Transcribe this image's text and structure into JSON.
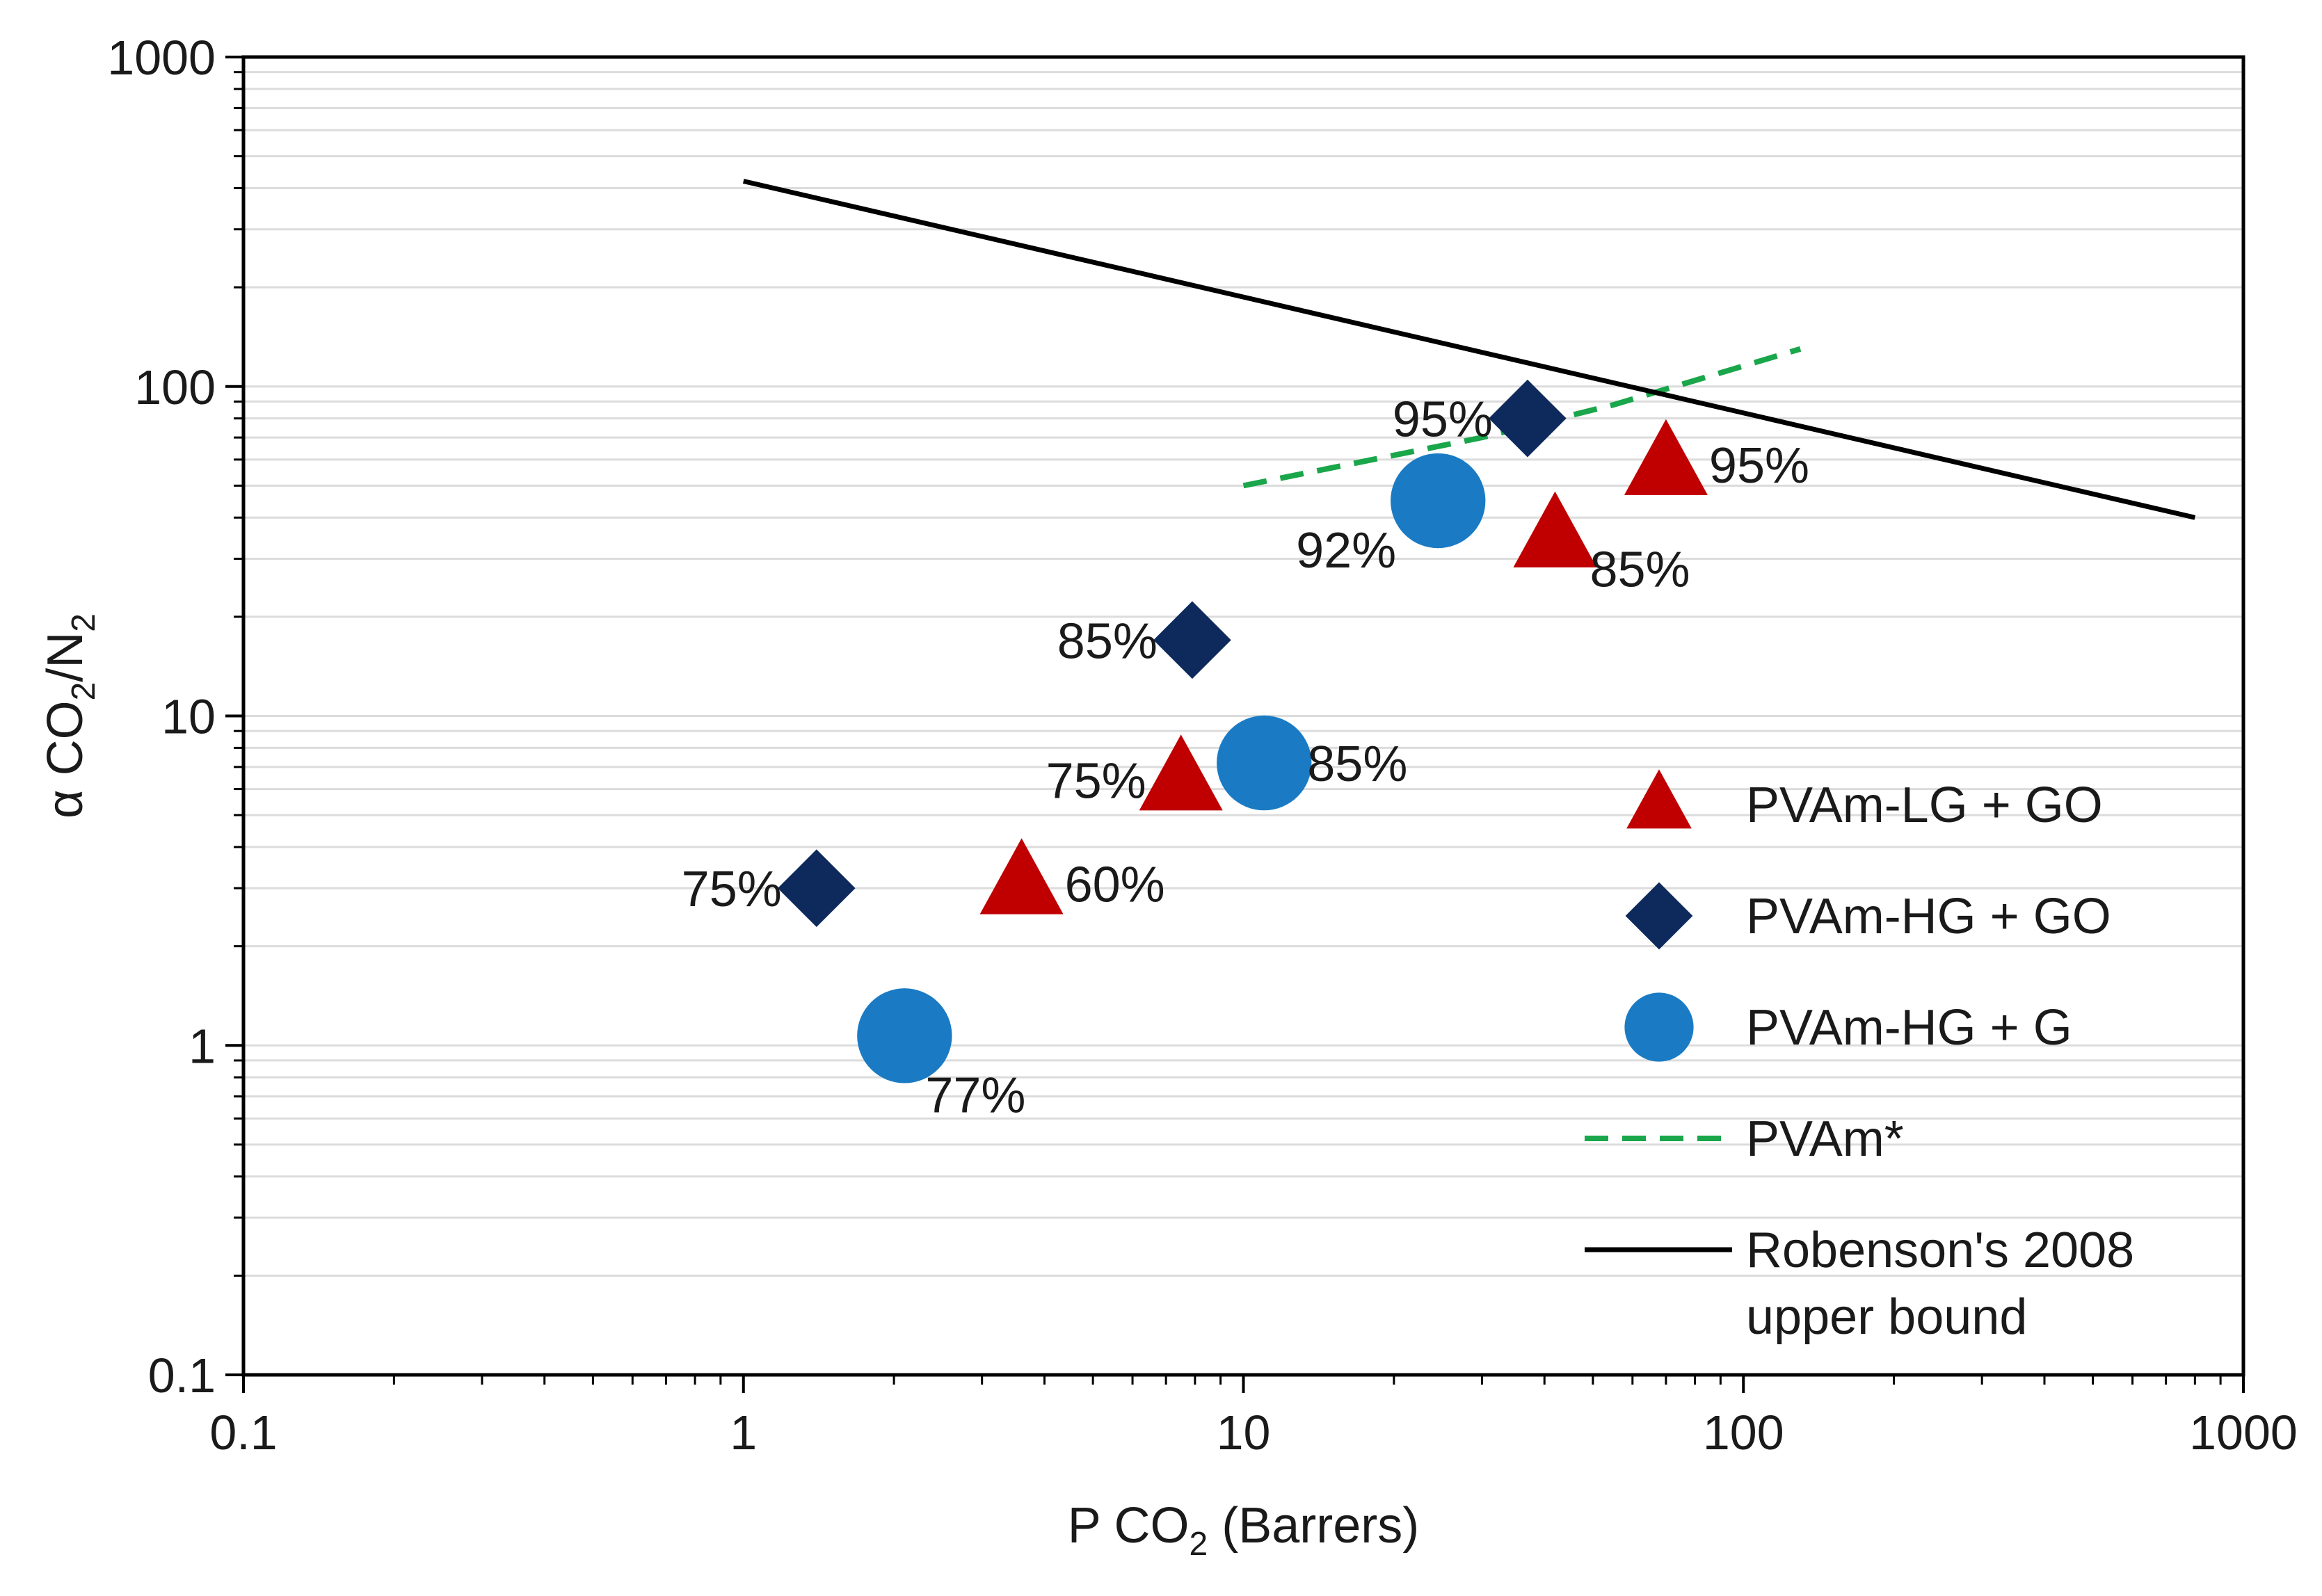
{
  "chart_data": {
    "type": "scatter",
    "title": "",
    "xscale": "log",
    "yscale": "log",
    "xlim": [
      0.1,
      1000
    ],
    "ylim": [
      0.1,
      1000
    ],
    "grid": "horizontal minor",
    "x_ticks": [
      "0.1",
      "1",
      "10",
      "100",
      "1000"
    ],
    "y_ticks": [
      "0.1",
      "1",
      "10",
      "100",
      "1000"
    ],
    "xlabel": {
      "pre": "P CO",
      "sub": "2",
      "post": " (Barrers)"
    },
    "ylabel": {
      "pre": "α CO",
      "sub1": "2",
      "mid": "/N",
      "sub2": "2"
    },
    "colors": {
      "red_triangle": "#c00000",
      "navy_diamond": "#0e2a5c",
      "blue_circle": "#1a7bc4",
      "green_dashed": "#1aa64a",
      "black_line": "#000000"
    },
    "series": [
      {
        "name": "PVAm-LG + GO",
        "marker": "triangle",
        "color": "#c00000",
        "points": [
          {
            "x": 3.6,
            "y": 3.1,
            "label": "60%",
            "label_pos": "right"
          },
          {
            "x": 7.5,
            "y": 6.4,
            "label": "75%",
            "label_pos": "left"
          },
          {
            "x": 42,
            "y": 35,
            "label": "85%",
            "label_pos": "below-right"
          },
          {
            "x": 70,
            "y": 58,
            "label": "95%",
            "label_pos": "right"
          }
        ]
      },
      {
        "name": "PVAm-HG + GO",
        "marker": "diamond",
        "color": "#0e2a5c",
        "points": [
          {
            "x": 1.4,
            "y": 3.0,
            "label": "75%",
            "label_pos": "left"
          },
          {
            "x": 7.9,
            "y": 17,
            "label": "85%",
            "label_pos": "left"
          },
          {
            "x": 37,
            "y": 80,
            "label": "95%",
            "label_pos": "left"
          }
        ]
      },
      {
        "name": "PVAm-HG + G",
        "marker": "circle",
        "color": "#1a7bc4",
        "points": [
          {
            "x": 2.1,
            "y": 1.07,
            "label": "77%",
            "label_pos": "below"
          },
          {
            "x": 11,
            "y": 7.2,
            "label": "85%",
            "label_pos": "right"
          },
          {
            "x": 24.5,
            "y": 45,
            "label": "92%",
            "label_pos": "below-left"
          }
        ]
      },
      {
        "name": "PVAm*",
        "type": "line",
        "style": "dashed",
        "color": "#1aa64a",
        "x": [
          10,
          30,
          55,
          130
        ],
        "y": [
          50,
          70,
          88,
          130
        ]
      },
      {
        "name": "Robenson's 2008 upper bound",
        "type": "line",
        "style": "solid",
        "color": "#000000",
        "x": [
          1,
          800
        ],
        "y": [
          420,
          40
        ]
      }
    ],
    "legend": {
      "position": "bottom-right",
      "entries": [
        {
          "lines": [
            "PVAm-LG + GO"
          ],
          "marker": "triangle",
          "color": "#c00000"
        },
        {
          "lines": [
            "PVAm-HG + GO"
          ],
          "marker": "diamond",
          "color": "#0e2a5c"
        },
        {
          "lines": [
            "PVAm-HG + G"
          ],
          "marker": "circle",
          "color": "#1a7bc4"
        },
        {
          "lines": [
            "PVAm*"
          ],
          "marker": "dashed-line",
          "color": "#1aa64a"
        },
        {
          "lines": [
            "Robenson's 2008",
            "upper bound"
          ],
          "marker": "solid-line",
          "color": "#000000"
        }
      ]
    }
  }
}
